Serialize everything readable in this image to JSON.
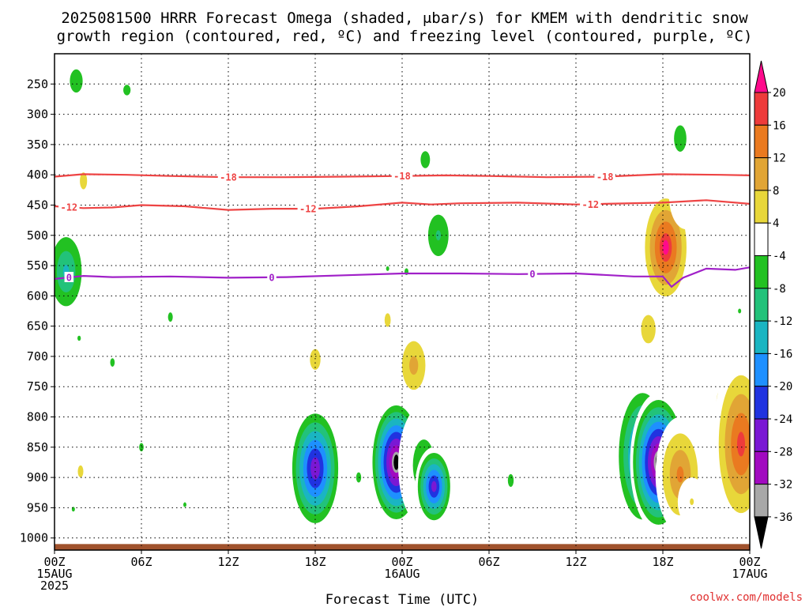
{
  "chart_data": {
    "type": "heatmap",
    "title_lines": [
      "2025081500 HRRR Forecast Omega (shaded, μbar/s) for KMEM with dendritic snow",
      "growth region (contoured, red, ºC) and freezing level (contoured, purple, ºC)"
    ],
    "xlabel": "Forecast Time (UTC)",
    "credit": "coolwx.com/models",
    "x_range_hours": [
      0,
      48
    ],
    "x_ticks": [
      {
        "hour": 0,
        "lines": [
          "00Z",
          "15AUG",
          "2025"
        ]
      },
      {
        "hour": 6,
        "lines": [
          "06Z"
        ]
      },
      {
        "hour": 12,
        "lines": [
          "12Z"
        ]
      },
      {
        "hour": 18,
        "lines": [
          "18Z"
        ]
      },
      {
        "hour": 24,
        "lines": [
          "00Z",
          "16AUG"
        ]
      },
      {
        "hour": 30,
        "lines": [
          "06Z"
        ]
      },
      {
        "hour": 36,
        "lines": [
          "12Z"
        ]
      },
      {
        "hour": 42,
        "lines": [
          "18Z"
        ]
      },
      {
        "hour": 48,
        "lines": [
          "00Z",
          "17AUG"
        ]
      }
    ],
    "y_axis": "pressure (hPa)",
    "y_range": [
      1020,
      200
    ],
    "y_ticks": [
      250,
      300,
      350,
      400,
      450,
      500,
      550,
      600,
      650,
      700,
      750,
      800,
      850,
      900,
      950,
      1000
    ],
    "ground_level_hpa": 1010,
    "colorbar": {
      "labels": [
        20,
        16,
        12,
        8,
        4,
        -4,
        -8,
        -12,
        -16,
        -20,
        -24,
        -28,
        -32,
        -36
      ],
      "colors": [
        "#ff0a8c",
        "#ee3b3b",
        "#ea7a20",
        "#e1a535",
        "#e8d73a",
        "#ffffff",
        "#22c122",
        "#22c27a",
        "#1ab5c2",
        "#1e90ff",
        "#2033e0",
        "#7a18d4",
        "#a10ac0",
        "#a8a8a8",
        "#000000"
      ]
    },
    "contours": [
      {
        "label": "-18",
        "color": "#ee4444",
        "label_hours": [
          12,
          24,
          38
        ],
        "points": [
          [
            0,
            403
          ],
          [
            2,
            399
          ],
          [
            5,
            400
          ],
          [
            8,
            402
          ],
          [
            12,
            404
          ],
          [
            16,
            404
          ],
          [
            20,
            403
          ],
          [
            24,
            402
          ],
          [
            27,
            401
          ],
          [
            30,
            402
          ],
          [
            34,
            404
          ],
          [
            38,
            403
          ],
          [
            42,
            399
          ],
          [
            46,
            400
          ],
          [
            48,
            401
          ]
        ]
      },
      {
        "label": "-12",
        "color": "#ee4444",
        "label_hours": [
          1,
          17.5,
          37
        ],
        "points": [
          [
            0,
            452
          ],
          [
            2,
            455
          ],
          [
            4,
            454
          ],
          [
            6,
            450
          ],
          [
            9,
            452
          ],
          [
            12,
            458
          ],
          [
            15,
            456
          ],
          [
            18,
            456
          ],
          [
            21,
            452
          ],
          [
            24,
            446
          ],
          [
            26,
            449
          ],
          [
            28,
            447
          ],
          [
            32,
            446
          ],
          [
            36,
            449
          ],
          [
            38,
            448
          ],
          [
            42,
            446
          ],
          [
            45,
            442
          ],
          [
            48,
            448
          ]
        ]
      },
      {
        "label": "0",
        "color": "#a020c8",
        "label_hours": [
          1,
          15,
          33
        ],
        "points": [
          [
            0,
            572
          ],
          [
            2,
            567
          ],
          [
            4,
            569
          ],
          [
            8,
            568
          ],
          [
            12,
            570
          ],
          [
            16,
            569
          ],
          [
            20,
            566
          ],
          [
            24,
            563
          ],
          [
            28,
            563
          ],
          [
            32,
            564
          ],
          [
            36,
            563
          ],
          [
            40,
            568
          ],
          [
            42,
            568
          ],
          [
            42.6,
            585
          ],
          [
            43.4,
            570
          ],
          [
            45,
            555
          ],
          [
            47,
            557
          ],
          [
            48,
            553
          ]
        ]
      }
    ],
    "omega_blobs": [
      {
        "hour": 1.5,
        "p_top": 200,
        "p_bot": 290,
        "peak": -10
      },
      {
        "hour": 5.0,
        "p_top": 232,
        "p_bot": 288,
        "peak": -9
      },
      {
        "hour": 2.0,
        "p_top": 310,
        "p_bot": 510,
        "peak": 8
      },
      {
        "hour": 4.0,
        "p_top": 265,
        "p_bot": 305,
        "peak": 5
      },
      {
        "hour": 0.8,
        "p_top": 480,
        "p_bot": 640,
        "peak": -16
      },
      {
        "hour": 1.7,
        "p_top": 640,
        "p_bot": 700,
        "peak": -8
      },
      {
        "hour": 4.0,
        "p_top": 660,
        "p_bot": 760,
        "peak": -8
      },
      {
        "hour": 1.8,
        "p_top": 820,
        "p_bot": 960,
        "peak": 8
      },
      {
        "hour": 4.0,
        "p_top": 860,
        "p_bot": 950,
        "peak": 6
      },
      {
        "hour": 1.3,
        "p_top": 945,
        "p_bot": 960,
        "peak": -8
      },
      {
        "hour": 6.0,
        "p_top": 800,
        "p_bot": 900,
        "peak": -8
      },
      {
        "hour": 8.0,
        "p_top": 580,
        "p_bot": 690,
        "peak": -8
      },
      {
        "hour": 6.8,
        "p_top": 760,
        "p_bot": 780,
        "peak": 5
      },
      {
        "hour": 9.0,
        "p_top": 935,
        "p_bot": 955,
        "peak": -8
      },
      {
        "hour": 18.0,
        "p_top": 650,
        "p_bot": 760,
        "peak": 9
      },
      {
        "hour": 20.0,
        "p_top": 680,
        "p_bot": 700,
        "peak": 5
      },
      {
        "hour": 18.0,
        "p_top": 780,
        "p_bot": 990,
        "peak": -29
      },
      {
        "hour": 21.0,
        "p_top": 840,
        "p_bot": 960,
        "peak": -8
      },
      {
        "hour": 23.0,
        "p_top": 560,
        "p_bot": 720,
        "peak": 8
      },
      {
        "hour": 24.8,
        "p_top": 650,
        "p_bot": 780,
        "peak": 13
      },
      {
        "hour": 22.2,
        "p_top": 300,
        "p_bot": 330,
        "peak": 5
      },
      {
        "hour": 23.6,
        "p_top": 770,
        "p_bot": 980,
        "peak": -37
      },
      {
        "hour": 25.5,
        "p_top": 780,
        "p_bot": 980,
        "peak": -10
      },
      {
        "hour": 26.2,
        "p_top": 850,
        "p_bot": 980,
        "peak": -28
      },
      {
        "hour": 24.3,
        "p_top": 520,
        "p_bot": 600,
        "peak": -8
      },
      {
        "hour": 23.0,
        "p_top": 530,
        "p_bot": 580,
        "peak": -8
      },
      {
        "hour": 26.5,
        "p_top": 440,
        "p_bot": 560,
        "peak": -12
      },
      {
        "hour": 25.6,
        "p_top": 330,
        "p_bot": 420,
        "peak": -9
      },
      {
        "hour": 26.0,
        "p_top": 200,
        "p_bot": 240,
        "peak": -8
      },
      {
        "hour": 25.6,
        "p_top": 200,
        "p_bot": 270,
        "peak": 6
      },
      {
        "hour": 27.5,
        "p_top": 230,
        "p_bot": 350,
        "peak": 5
      },
      {
        "hour": 25.6,
        "p_top": 410,
        "p_bot": 460,
        "peak": 5
      },
      {
        "hour": 27.0,
        "p_top": 640,
        "p_bot": 760,
        "peak": 5
      },
      {
        "hour": 31.5,
        "p_top": 830,
        "p_bot": 980,
        "peak": -8
      },
      {
        "hour": 33.0,
        "p_top": 820,
        "p_bot": 920,
        "peak": 5
      },
      {
        "hour": 35.2,
        "p_top": 430,
        "p_bot": 490,
        "peak": 5
      },
      {
        "hour": 38.0,
        "p_top": 420,
        "p_bot": 470,
        "peak": 5
      },
      {
        "hour": 40.6,
        "p_top": 740,
        "p_bot": 990,
        "peak": -25
      },
      {
        "hour": 41.7,
        "p_top": 760,
        "p_bot": 990,
        "peak": -37
      },
      {
        "hour": 42.2,
        "p_top": 420,
        "p_bot": 620,
        "peak": 22
      },
      {
        "hour": 41.0,
        "p_top": 600,
        "p_bot": 710,
        "peak": 10
      },
      {
        "hour": 43.2,
        "p_top": 800,
        "p_bot": 990,
        "peak": 16
      },
      {
        "hour": 44.0,
        "p_top": 900,
        "p_bot": 980,
        "peak": 8
      },
      {
        "hour": 43.2,
        "p_top": 670,
        "p_bot": 750,
        "peak": 5
      },
      {
        "hour": 43.6,
        "p_top": 380,
        "p_bot": 490,
        "peak": 6
      },
      {
        "hour": 45.0,
        "p_top": 380,
        "p_bot": 480,
        "peak": 5
      },
      {
        "hour": 47.5,
        "p_top": 440,
        "p_bot": 530,
        "peak": 5
      },
      {
        "hour": 47.3,
        "p_top": 600,
        "p_bot": 650,
        "peak": -8
      },
      {
        "hour": 46.2,
        "p_top": 720,
        "p_bot": 830,
        "peak": 10
      },
      {
        "hour": 47.4,
        "p_top": 700,
        "p_bot": 990,
        "peak": 20
      },
      {
        "hour": 43.2,
        "p_top": 270,
        "p_bot": 410,
        "peak": -9
      },
      {
        "hour": 47.7,
        "p_top": 210,
        "p_bot": 380,
        "peak": 6
      }
    ]
  }
}
